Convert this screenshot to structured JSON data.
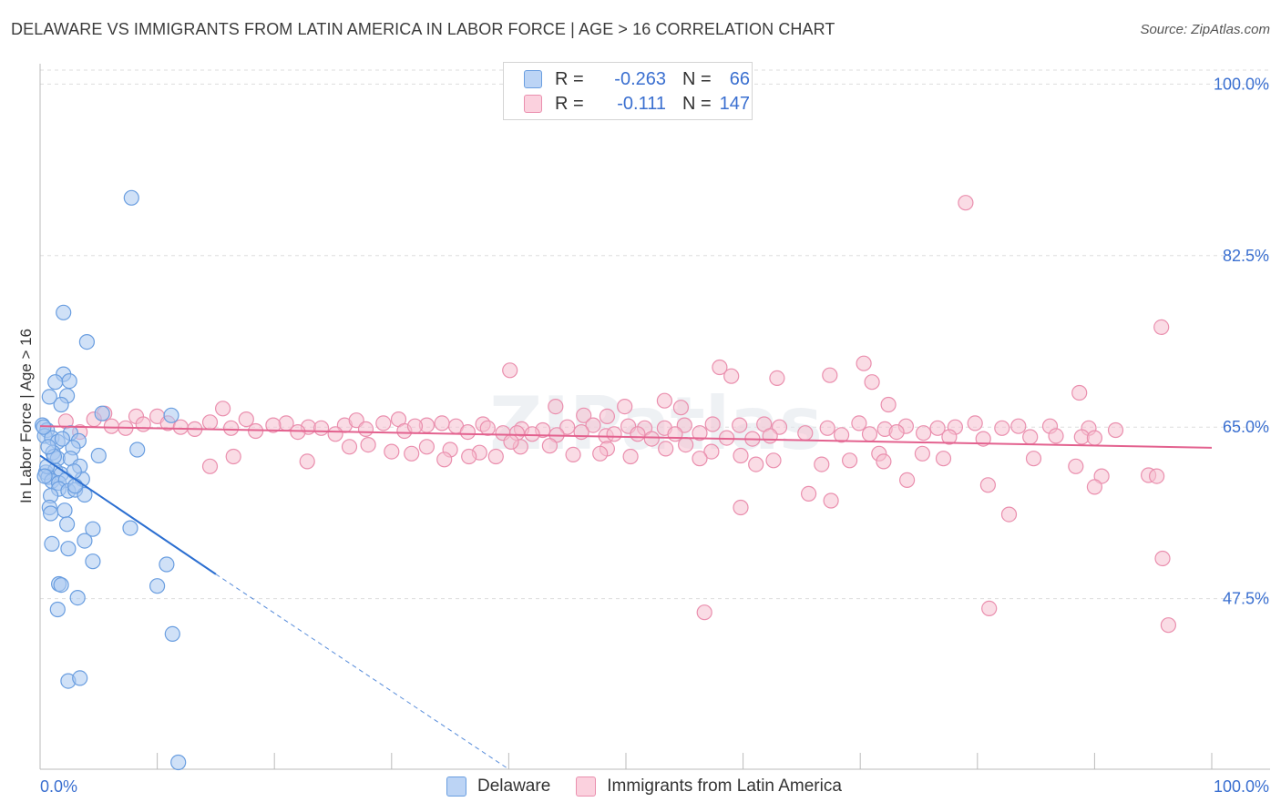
{
  "header": {
    "title": "DELAWARE VS IMMIGRANTS FROM LATIN AMERICA IN LABOR FORCE | AGE > 16 CORRELATION CHART",
    "source": "Source: ZipAtlas.com"
  },
  "legend": {
    "rows": [
      {
        "r_label": "R = ",
        "r_value": "-0.263",
        "n_label": "N = ",
        "n_value": "66"
      },
      {
        "r_label": "R = ",
        "r_value": "-0.111",
        "n_label": "N = ",
        "n_value": "147"
      }
    ]
  },
  "bottom_legend": {
    "items": [
      {
        "label": "Delaware"
      },
      {
        "label": "Immigrants from Latin America"
      }
    ]
  },
  "colors": {
    "blue_fill": "#a9c8f0",
    "blue_stroke": "#6a9ee0",
    "blue_line": "#2c6fd1",
    "pink_fill": "#f6bfd0",
    "pink_stroke": "#ea8fae",
    "pink_line": "#e3628f",
    "tick_text": "#3a6fd0",
    "grid": "#dddddd"
  },
  "chart_data": {
    "type": "scatter",
    "title": "DELAWARE VS IMMIGRANTS FROM LATIN AMERICA IN LABOR FORCE | AGE > 16 CORRELATION CHART",
    "xlabel": "",
    "ylabel": "In Labor Force | Age > 16",
    "xlim": [
      0,
      100
    ],
    "ylim": [
      30.1,
      101.8
    ],
    "x_tick_labels": [
      "0.0%",
      "100.0%"
    ],
    "y_ticks": [
      47.5,
      65.0,
      82.5,
      100.0
    ],
    "y_tick_labels": [
      "47.5%",
      "65.0%",
      "82.5%",
      "100.0%"
    ],
    "grid": true,
    "watermark": "ZIPatlas",
    "series": [
      {
        "name": "Delaware",
        "r": -0.263,
        "n": 66,
        "trend": {
          "x": [
            0,
            15
          ],
          "y": [
            62.1,
            50.0
          ]
        },
        "trend_extension": {
          "x": [
            15,
            40
          ],
          "y": [
            50.0,
            30.1
          ]
        },
        "points": [
          [
            7.8,
            88.4
          ],
          [
            2.0,
            76.7
          ],
          [
            4.0,
            73.7
          ],
          [
            2.0,
            70.4
          ],
          [
            1.3,
            69.6
          ],
          [
            2.5,
            69.7
          ],
          [
            2.3,
            68.2
          ],
          [
            1.8,
            67.3
          ],
          [
            0.8,
            68.1
          ],
          [
            5.3,
            66.4
          ],
          [
            11.2,
            66.2
          ],
          [
            0.2,
            65.2
          ],
          [
            0.6,
            64.7
          ],
          [
            0.4,
            64.1
          ],
          [
            1.0,
            63.9
          ],
          [
            1.5,
            63.5
          ],
          [
            2.6,
            64.4
          ],
          [
            3.3,
            63.6
          ],
          [
            2.8,
            62.9
          ],
          [
            1.1,
            62.4
          ],
          [
            1.5,
            61.8
          ],
          [
            2.6,
            61.8
          ],
          [
            3.4,
            61.0
          ],
          [
            5.0,
            62.1
          ],
          [
            0.5,
            60.4
          ],
          [
            1.3,
            60.6
          ],
          [
            1.8,
            60.2
          ],
          [
            0.7,
            59.9
          ],
          [
            1.0,
            59.5
          ],
          [
            1.6,
            59.3
          ],
          [
            2.2,
            59.6
          ],
          [
            3.6,
            59.7
          ],
          [
            1.6,
            58.7
          ],
          [
            2.4,
            58.5
          ],
          [
            3.0,
            58.6
          ],
          [
            0.9,
            58.0
          ],
          [
            3.8,
            58.1
          ],
          [
            0.8,
            56.8
          ],
          [
            2.1,
            56.5
          ],
          [
            0.9,
            56.2
          ],
          [
            8.3,
            62.7
          ],
          [
            2.3,
            55.1
          ],
          [
            4.5,
            54.6
          ],
          [
            7.7,
            54.7
          ],
          [
            3.8,
            53.4
          ],
          [
            1.0,
            53.1
          ],
          [
            2.4,
            52.6
          ],
          [
            4.5,
            51.3
          ],
          [
            10.8,
            51.0
          ],
          [
            1.6,
            49.0
          ],
          [
            1.8,
            48.9
          ],
          [
            10.0,
            48.8
          ],
          [
            3.2,
            47.6
          ],
          [
            1.5,
            46.4
          ],
          [
            11.3,
            43.9
          ],
          [
            2.4,
            39.1
          ],
          [
            3.4,
            39.4
          ],
          [
            11.8,
            30.8
          ],
          [
            0.6,
            61.0
          ],
          [
            0.4,
            60.0
          ],
          [
            1.2,
            62.0
          ],
          [
            2.9,
            60.5
          ],
          [
            0.7,
            63.0
          ],
          [
            1.9,
            63.8
          ],
          [
            3.0,
            59.0
          ],
          [
            0.3,
            65.0
          ]
        ]
      },
      {
        "name": "Immigrants from Latin America",
        "r": -0.111,
        "n": 147,
        "trend": {
          "x": [
            0,
            100
          ],
          "y": [
            65.1,
            62.9
          ]
        },
        "points": [
          [
            79.0,
            87.9
          ],
          [
            95.7,
            75.2
          ],
          [
            58.0,
            71.1
          ],
          [
            59.0,
            70.2
          ],
          [
            67.4,
            70.3
          ],
          [
            70.3,
            71.5
          ],
          [
            62.9,
            70.0
          ],
          [
            71.0,
            69.6
          ],
          [
            40.1,
            70.8
          ],
          [
            88.7,
            68.5
          ],
          [
            44.0,
            67.1
          ],
          [
            49.9,
            67.1
          ],
          [
            53.3,
            67.7
          ],
          [
            54.7,
            67.0
          ],
          [
            46.4,
            66.2
          ],
          [
            48.4,
            66.1
          ],
          [
            72.4,
            67.3
          ],
          [
            15.6,
            66.9
          ],
          [
            5.5,
            66.4
          ],
          [
            8.2,
            66.1
          ],
          [
            10.0,
            66.1
          ],
          [
            10.9,
            65.4
          ],
          [
            17.6,
            65.8
          ],
          [
            21.0,
            65.4
          ],
          [
            22.9,
            65.0
          ],
          [
            26.0,
            65.2
          ],
          [
            27.0,
            65.7
          ],
          [
            30.6,
            65.8
          ],
          [
            33.0,
            65.2
          ],
          [
            35.5,
            65.1
          ],
          [
            37.8,
            65.3
          ],
          [
            41.1,
            64.8
          ],
          [
            42.9,
            64.7
          ],
          [
            45.0,
            65.0
          ],
          [
            47.2,
            65.2
          ],
          [
            50.2,
            65.1
          ],
          [
            51.6,
            64.9
          ],
          [
            53.3,
            64.9
          ],
          [
            55.0,
            65.2
          ],
          [
            57.4,
            65.3
          ],
          [
            59.7,
            65.2
          ],
          [
            61.8,
            65.3
          ],
          [
            63.1,
            65.0
          ],
          [
            67.2,
            64.9
          ],
          [
            69.9,
            65.4
          ],
          [
            72.1,
            64.8
          ],
          [
            73.9,
            65.1
          ],
          [
            76.6,
            64.9
          ],
          [
            78.1,
            65.0
          ],
          [
            79.8,
            65.4
          ],
          [
            82.1,
            64.9
          ],
          [
            83.5,
            65.1
          ],
          [
            86.2,
            65.1
          ],
          [
            89.5,
            64.9
          ],
          [
            91.8,
            64.7
          ],
          [
            2.2,
            65.6
          ],
          [
            3.4,
            64.5
          ],
          [
            4.6,
            65.8
          ],
          [
            6.1,
            65.1
          ],
          [
            7.3,
            64.9
          ],
          [
            8.8,
            65.3
          ],
          [
            12.0,
            65.0
          ],
          [
            13.2,
            64.8
          ],
          [
            14.5,
            65.5
          ],
          [
            16.3,
            64.9
          ],
          [
            18.4,
            64.6
          ],
          [
            19.9,
            65.2
          ],
          [
            22.0,
            64.5
          ],
          [
            24.0,
            64.9
          ],
          [
            25.2,
            64.3
          ],
          [
            27.8,
            64.8
          ],
          [
            29.3,
            65.4
          ],
          [
            31.1,
            64.6
          ],
          [
            32.0,
            65.1
          ],
          [
            34.3,
            65.4
          ],
          [
            36.5,
            64.5
          ],
          [
            38.2,
            64.9
          ],
          [
            39.5,
            64.4
          ],
          [
            40.7,
            64.4
          ],
          [
            42.0,
            64.3
          ],
          [
            44.1,
            64.2
          ],
          [
            46.2,
            64.5
          ],
          [
            48.3,
            64.1
          ],
          [
            49.0,
            64.3
          ],
          [
            51.0,
            64.3
          ],
          [
            52.2,
            63.8
          ],
          [
            54.2,
            64.3
          ],
          [
            56.3,
            64.4
          ],
          [
            58.6,
            63.9
          ],
          [
            60.8,
            63.8
          ],
          [
            62.3,
            64.1
          ],
          [
            65.3,
            64.4
          ],
          [
            68.4,
            64.2
          ],
          [
            70.8,
            64.3
          ],
          [
            73.1,
            64.5
          ],
          [
            75.4,
            64.4
          ],
          [
            77.6,
            64.0
          ],
          [
            80.5,
            63.8
          ],
          [
            84.5,
            64.0
          ],
          [
            86.7,
            64.1
          ],
          [
            88.9,
            64.0
          ],
          [
            90.0,
            63.9
          ],
          [
            28.0,
            63.2
          ],
          [
            30.0,
            62.5
          ],
          [
            33.0,
            63.0
          ],
          [
            35.0,
            62.7
          ],
          [
            37.5,
            62.4
          ],
          [
            38.9,
            62.0
          ],
          [
            41.0,
            63.0
          ],
          [
            43.5,
            63.1
          ],
          [
            45.5,
            62.2
          ],
          [
            48.4,
            62.8
          ],
          [
            50.4,
            62.0
          ],
          [
            53.4,
            62.8
          ],
          [
            55.1,
            63.2
          ],
          [
            57.3,
            62.5
          ],
          [
            59.8,
            62.1
          ],
          [
            61.1,
            61.2
          ],
          [
            62.6,
            61.6
          ],
          [
            66.7,
            61.2
          ],
          [
            69.1,
            61.6
          ],
          [
            71.6,
            62.3
          ],
          [
            72.0,
            61.5
          ],
          [
            75.3,
            62.3
          ],
          [
            77.1,
            61.8
          ],
          [
            84.8,
            61.8
          ],
          [
            88.4,
            61.0
          ],
          [
            90.6,
            60.0
          ],
          [
            94.6,
            60.1
          ],
          [
            95.3,
            60.0
          ],
          [
            40.2,
            63.5
          ],
          [
            14.5,
            61.0
          ],
          [
            16.5,
            62.0
          ],
          [
            22.8,
            61.5
          ],
          [
            26.4,
            63.0
          ],
          [
            31.7,
            62.3
          ],
          [
            34.5,
            61.7
          ],
          [
            36.6,
            62.0
          ],
          [
            47.8,
            62.3
          ],
          [
            56.3,
            61.8
          ],
          [
            59.8,
            56.8
          ],
          [
            74.0,
            59.6
          ],
          [
            80.9,
            59.1
          ],
          [
            82.7,
            56.1
          ],
          [
            90.0,
            58.9
          ],
          [
            95.8,
            51.6
          ],
          [
            56.7,
            46.1
          ],
          [
            81.0,
            46.5
          ],
          [
            96.3,
            44.8
          ],
          [
            65.6,
            58.2
          ],
          [
            67.5,
            57.5
          ]
        ]
      }
    ]
  }
}
